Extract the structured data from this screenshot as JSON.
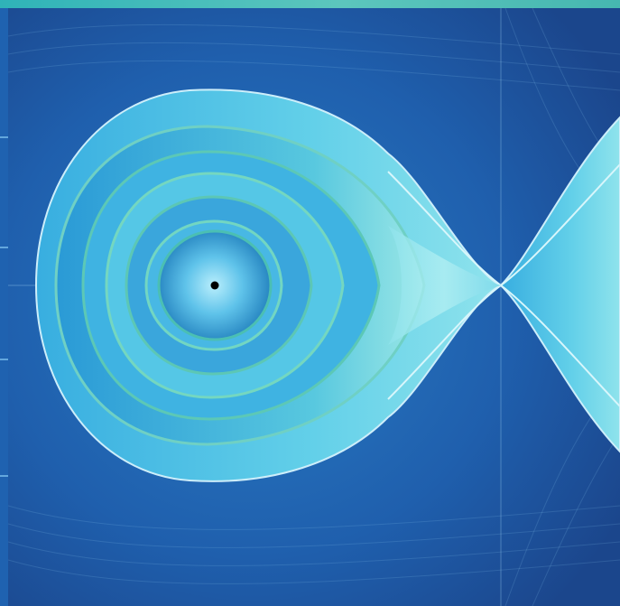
{
  "image": {
    "subject": "phase portrait",
    "palette": {
      "background": "#1d4f9a",
      "background_light": "#2a7cc4",
      "orbit_light": "#8fe3ec",
      "orbit_mid": "#40b9df",
      "orbit_teal": "#57c9b7",
      "orbit_dark": "#1e8ccc",
      "equilibrium_point": "#000000"
    }
  }
}
